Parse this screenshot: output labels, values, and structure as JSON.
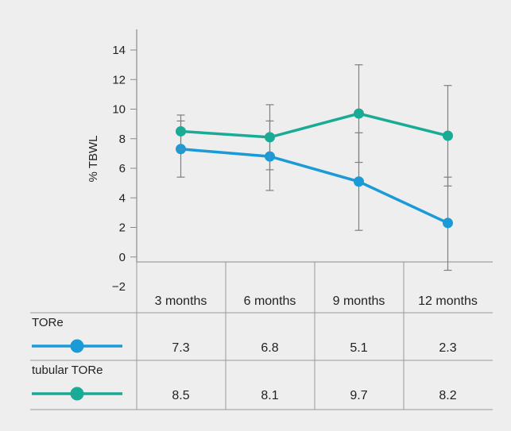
{
  "chart_data": {
    "type": "line",
    "ylabel": "% TBWL",
    "ylim": [
      -2,
      14
    ],
    "yticks": [
      "14",
      "12",
      "10",
      "8",
      "6",
      "4",
      "2",
      "0",
      "−2"
    ],
    "categories": [
      "3 months",
      "6 months",
      "9 months",
      "12 months"
    ],
    "series": [
      {
        "name": "TORe",
        "color": "#1a9ad6",
        "values": [
          7.3,
          6.8,
          5.1,
          2.3
        ],
        "value_labels": [
          "7.3",
          "6.8",
          "5.1",
          "2.3"
        ],
        "error_low": [
          5.4,
          4.5,
          1.8,
          -0.9
        ],
        "error_high": [
          9.2,
          9.2,
          8.4,
          5.4
        ]
      },
      {
        "name": "tubular TORe",
        "color": "#1aab97",
        "values": [
          8.5,
          8.1,
          9.7,
          8.2
        ],
        "value_labels": [
          "8.5",
          "8.1",
          "9.7",
          "8.2"
        ],
        "error_low": [
          7.3,
          5.9,
          6.4,
          4.8
        ],
        "error_high": [
          9.6,
          10.3,
          13.0,
          11.6
        ]
      }
    ],
    "grid": false,
    "legend": "table-below"
  }
}
